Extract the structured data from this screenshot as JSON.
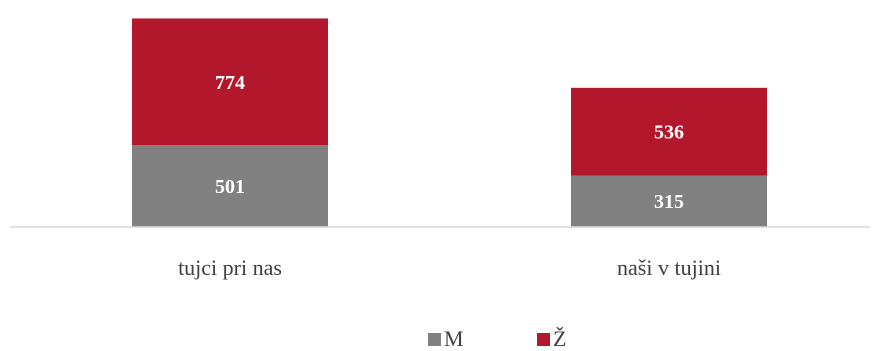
{
  "chart_data": {
    "type": "bar",
    "stacked": true,
    "categories": [
      "tujci pri nas",
      "naši v tujini"
    ],
    "series": [
      {
        "name": "M",
        "values": [
          501,
          315
        ],
        "color": "#808080"
      },
      {
        "name": "Ž",
        "values": [
          774,
          536
        ],
        "color": "#b3172c"
      }
    ],
    "title": "",
    "xlabel": "",
    "ylabel": "",
    "ylim": [
      0,
      1290
    ],
    "grid": false,
    "legend_position": "bottom",
    "data_labels": true
  }
}
